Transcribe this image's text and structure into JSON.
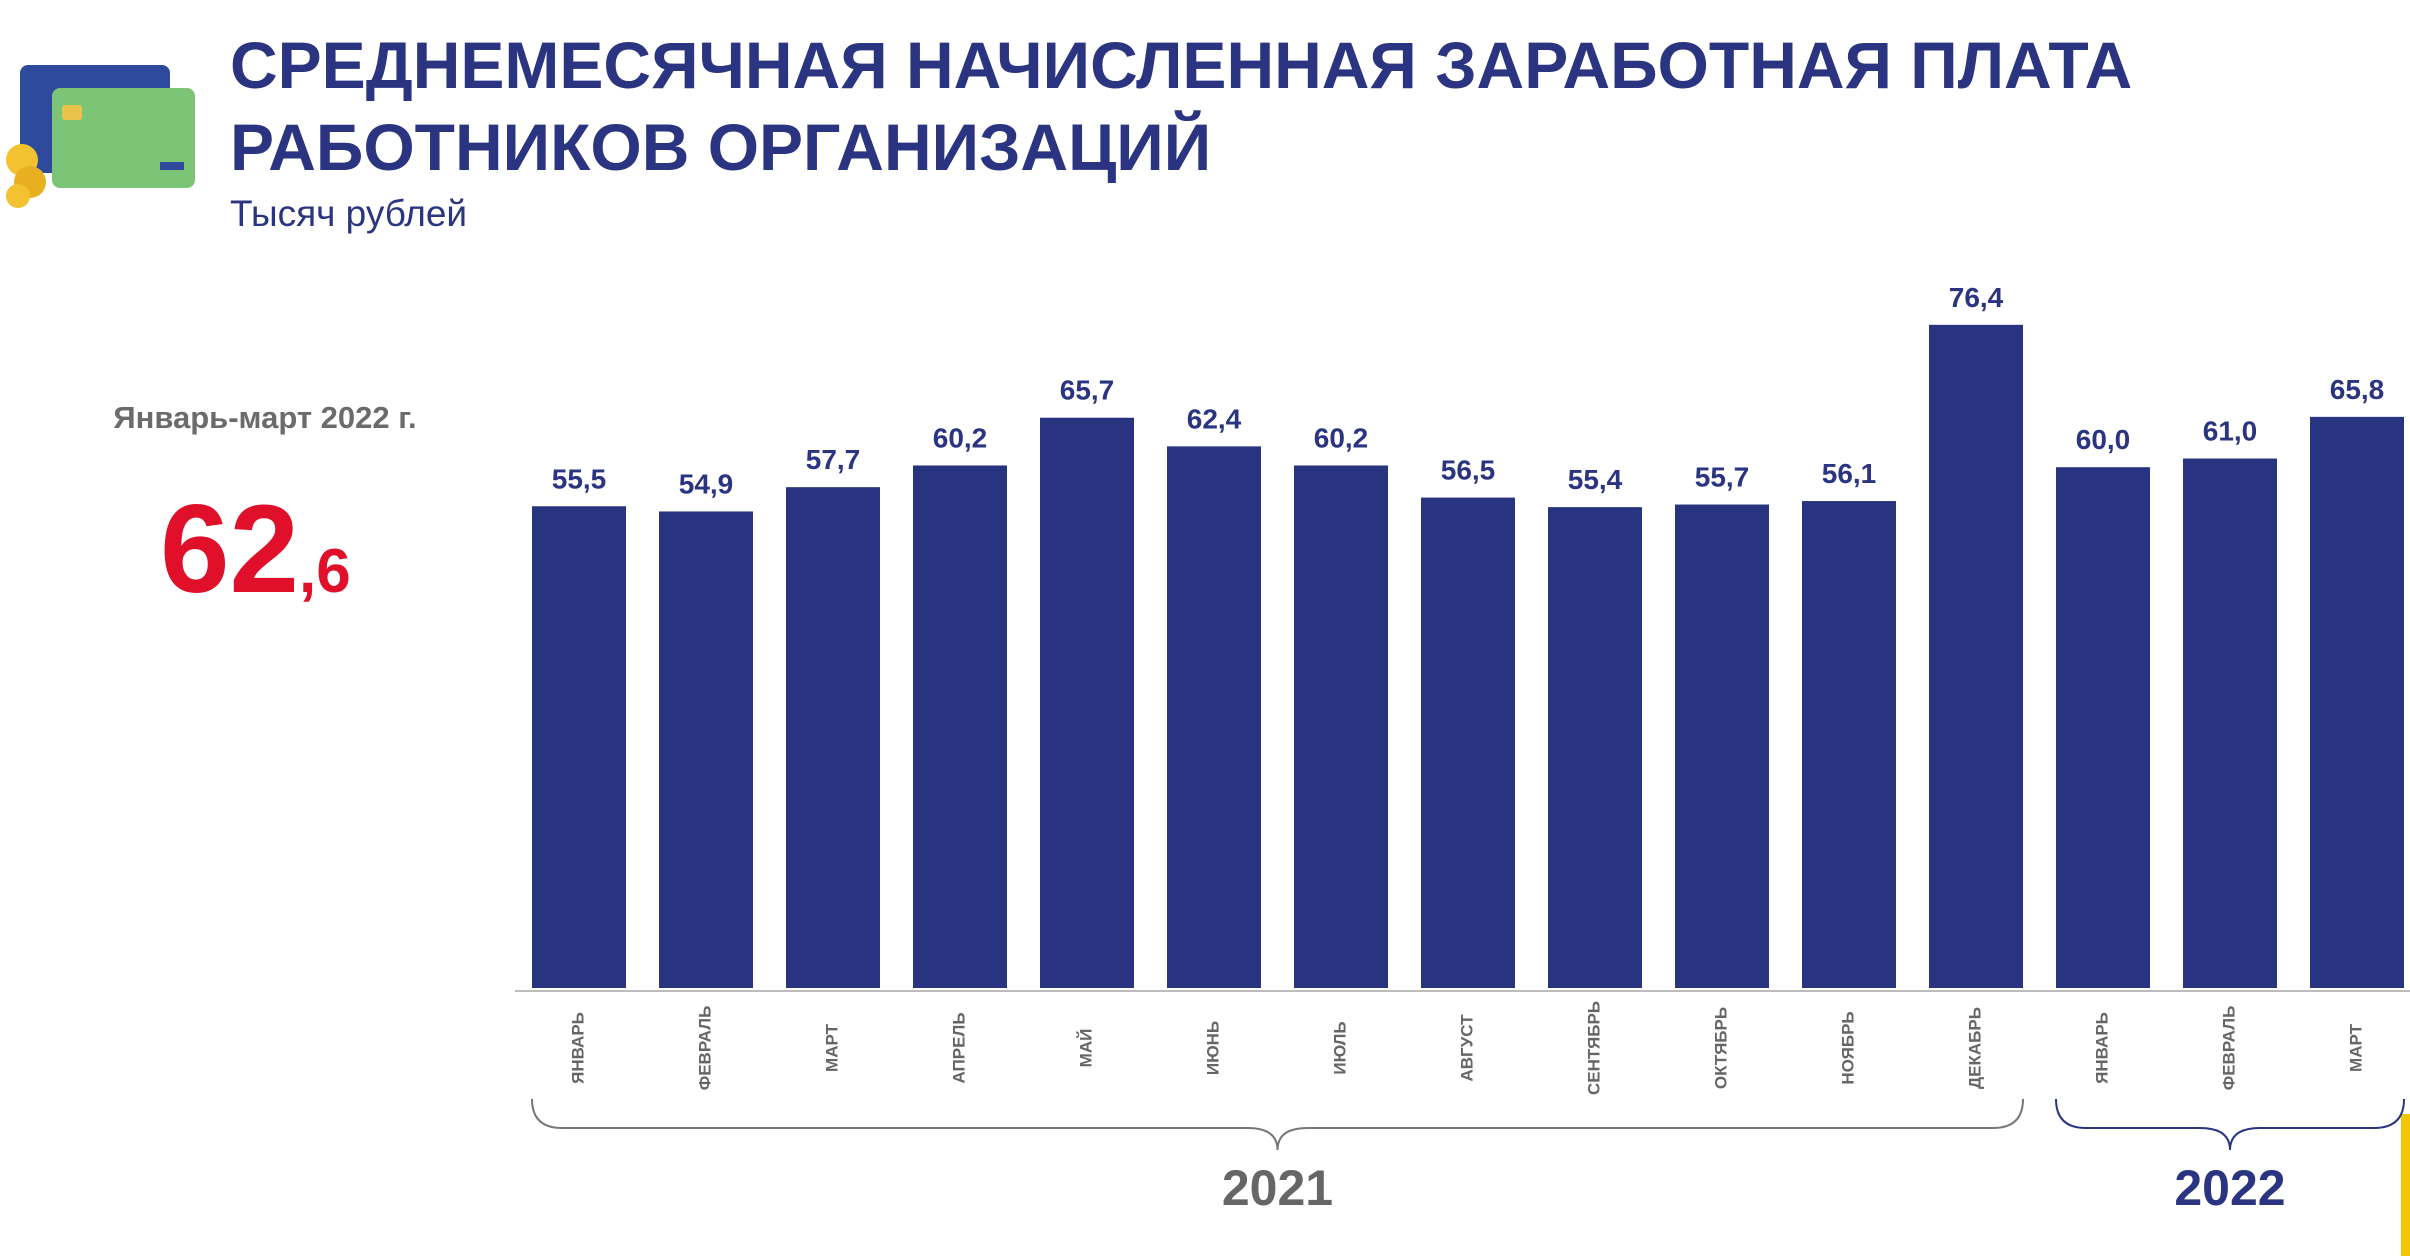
{
  "chart_data": {
    "type": "bar",
    "title": [
      "СРЕДНЕМЕСЯЧНАЯ НАЧИСЛЕННАЯ ЗАРАБОТНАЯ ПЛАТА",
      "РАБОТНИКОВ ОРГАНИЗАЦИЙ"
    ],
    "subtitle": "Тысяч рублей",
    "summary": {
      "label": "Январь-март 2022 г.",
      "integer": "62",
      "fraction": ",6"
    },
    "categories": [
      "ЯНВАРЬ",
      "ФЕВРАЛЬ",
      "МАРТ",
      "АПРЕЛЬ",
      "МАЙ",
      "ИЮНЬ",
      "ИЮЛЬ",
      "АВГУСТ",
      "СЕНТЯБРЬ",
      "ОКТЯБРЬ",
      "НОЯБРЬ",
      "ДЕКАБРЬ",
      "ЯНВАРЬ",
      "ФЕВРАЛЬ",
      "МАРТ"
    ],
    "values": [
      55.5,
      54.9,
      57.7,
      60.2,
      65.7,
      62.4,
      60.2,
      56.5,
      55.4,
      55.7,
      56.1,
      76.4,
      60.0,
      61.0,
      65.8
    ],
    "value_labels": [
      "55,5",
      "54,9",
      "57,7",
      "60,2",
      "65,7",
      "62,4",
      "60,2",
      "56,5",
      "55,4",
      "55,7",
      "56,1",
      "76,4",
      "60,0",
      "61,0",
      "65,8"
    ],
    "groups": [
      "2021",
      "2022"
    ],
    "color": "#28347f"
  }
}
